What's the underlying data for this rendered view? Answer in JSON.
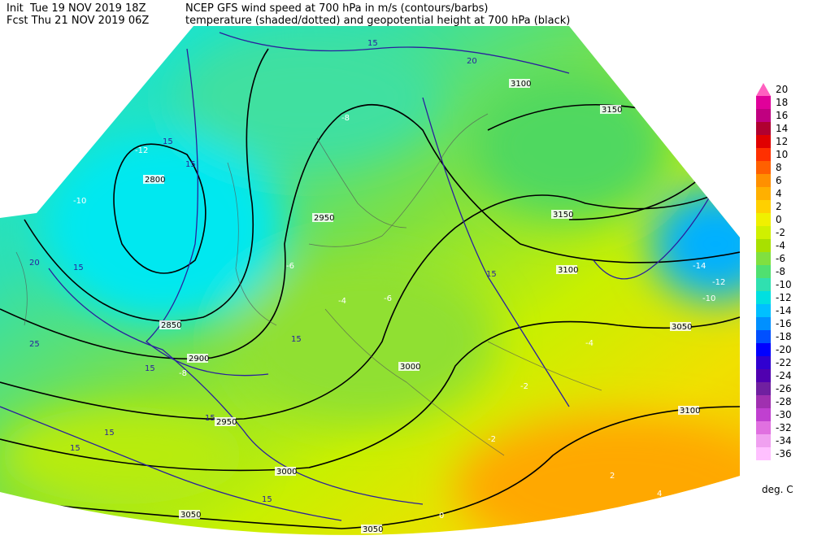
{
  "header": {
    "init": "Init  Tue 19 NOV 2019 18Z",
    "fcst": "Fcst Thu 21 NOV 2019 06Z",
    "line1": "NCEP GFS wind speed at 700 hPa in m/s (contours/barbs)",
    "line2": "temperature (shaded/dotted) and geopotential height at 700 hPa (black)"
  },
  "colorbar": {
    "labels": [
      20,
      18,
      16,
      14,
      12,
      10,
      8,
      6,
      4,
      2,
      0,
      -2,
      -4,
      -6,
      -8,
      -10,
      -12,
      -14,
      -16,
      -18,
      -20,
      -22,
      -24,
      -26,
      -28,
      -30,
      -32,
      -34,
      -36
    ],
    "colors": [
      "#ff60c0",
      "#e0009a",
      "#c00080",
      "#b00030",
      "#e00000",
      "#ff3000",
      "#ff6000",
      "#ff9000",
      "#ffb000",
      "#ffd000",
      "#f0f000",
      "#d0f000",
      "#a8e000",
      "#80e040",
      "#50e070",
      "#30e0b0",
      "#00e0e0",
      "#00c0ff",
      "#0090ff",
      "#0050ff",
      "#0000ff",
      "#3000d0",
      "#5000b0",
      "#7020a0",
      "#a030b0",
      "#c040d0",
      "#e070e0",
      "#f0a0f0",
      "#ffc0ff"
    ],
    "unit": "deg. C"
  },
  "map": {
    "height_labels": [
      "2800",
      "2850",
      "2900",
      "2950",
      "2950",
      "3000",
      "3000",
      "3050",
      "3050",
      "3050",
      "3100",
      "3100",
      "3100",
      "3150",
      "3150"
    ],
    "wind_labels": [
      "15",
      "15",
      "15",
      "15",
      "15",
      "15",
      "15",
      "15",
      "15",
      "15",
      "15",
      "20",
      "20",
      "25"
    ],
    "temp_labels": [
      "-12",
      "-10",
      "-8",
      "-6",
      "-6",
      "-4",
      "-4",
      "-2",
      "-2",
      "0",
      "2",
      "4",
      "-14",
      "-12",
      "-10",
      "-8"
    ]
  }
}
